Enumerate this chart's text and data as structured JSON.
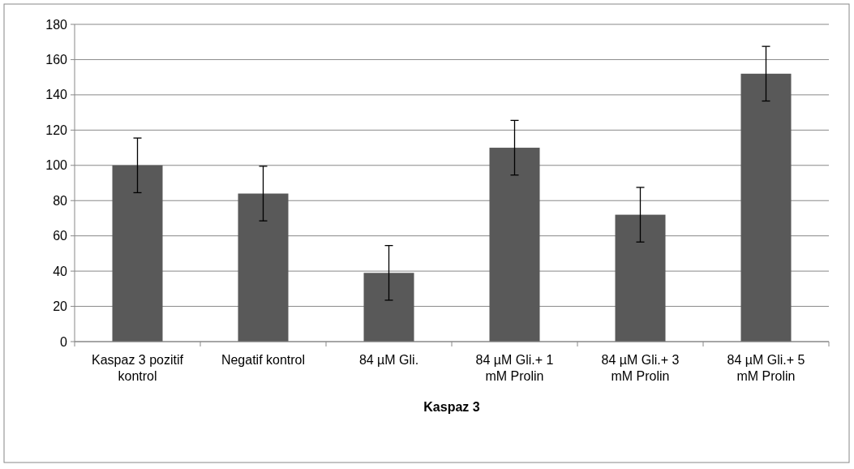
{
  "chart_data": {
    "type": "bar",
    "xlabel": "Kaspaz 3",
    "categories": [
      "Kaspaz 3 pozitif kontrol",
      "Negatif kontrol",
      "84 µM Gli.",
      "84 µM Gli.+ 1 mM Prolin",
      "84 µM Gli.+ 3 mM Prolin",
      "84 µM Gli.+ 5 mM Prolin"
    ],
    "values": [
      100,
      84,
      39,
      110,
      72,
      152
    ],
    "errors": [
      15.5,
      15.5,
      15.5,
      15.5,
      15.5,
      15.5
    ],
    "color": "#595959",
    "ylim": [
      0,
      180
    ],
    "yticks": [
      0,
      20,
      40,
      60,
      80,
      100,
      120,
      140,
      160,
      180
    ],
    "grid": "y"
  }
}
